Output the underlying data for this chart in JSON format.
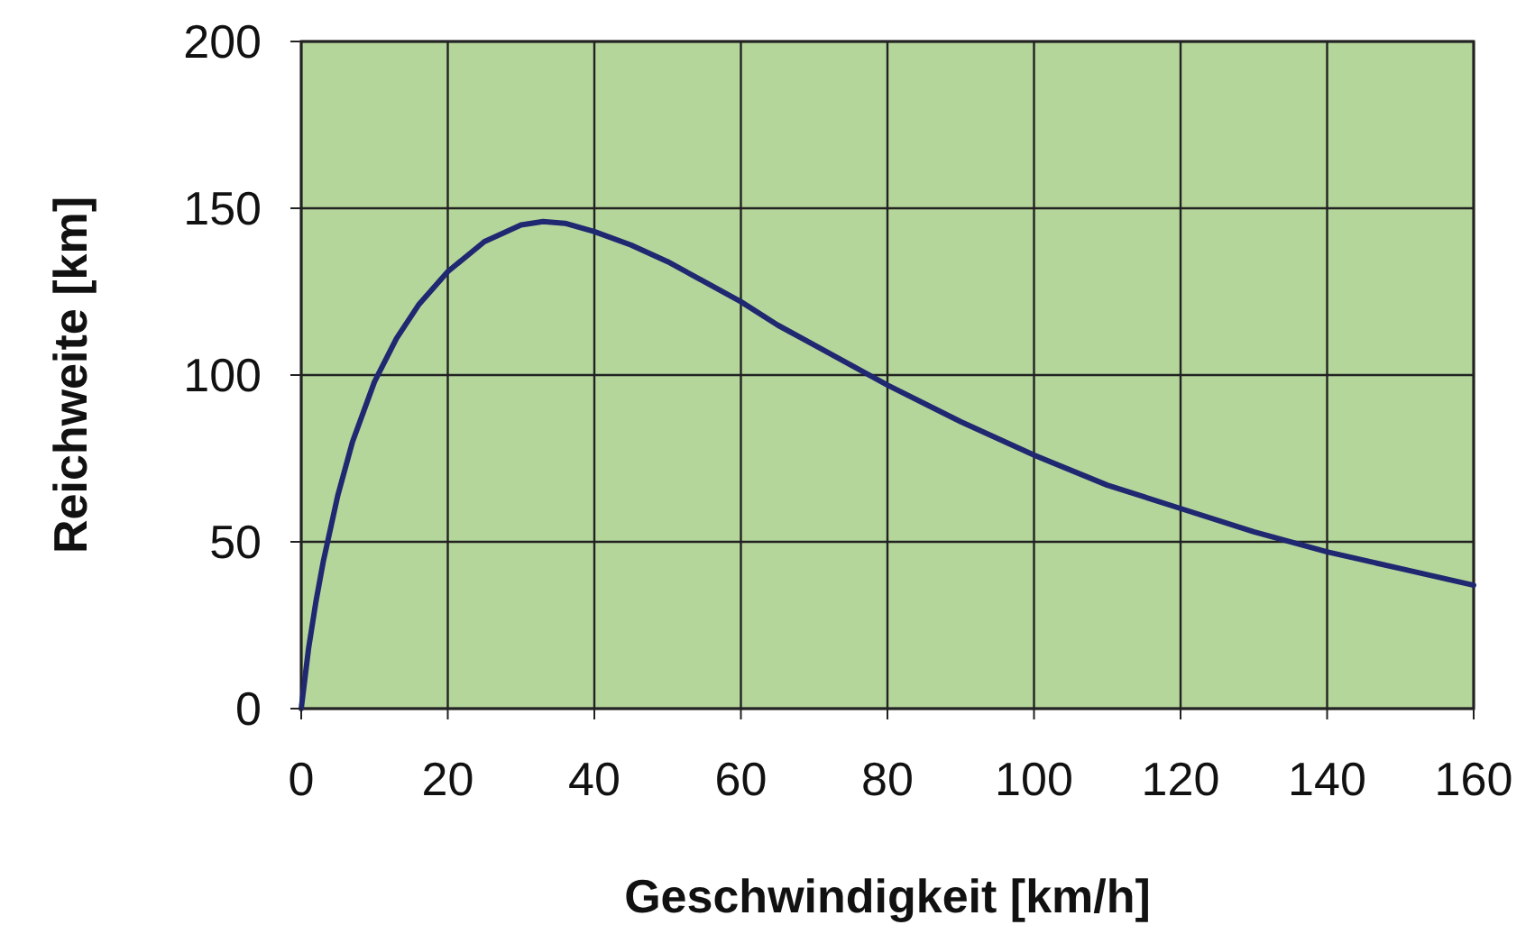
{
  "chart_data": {
    "type": "line",
    "xlabel": "Geschwindigkeit  [km/h]",
    "ylabel": "Reichweite  [km]",
    "x": [
      0,
      1,
      2,
      3,
      5,
      7,
      10,
      13,
      16,
      20,
      25,
      30,
      33,
      36,
      40,
      45,
      50,
      55,
      60,
      65,
      70,
      75,
      80,
      90,
      100,
      110,
      120,
      130,
      140,
      150,
      160
    ],
    "series": [
      {
        "color": "#1f2870",
        "values": [
          0,
          18,
          32,
          44,
          64,
          80,
          98,
          111,
          121,
          131,
          140,
          145,
          146,
          145.5,
          143,
          139,
          134,
          128,
          122,
          115,
          109,
          103,
          97,
          86,
          76,
          67,
          60,
          53,
          47,
          42,
          37
        ]
      }
    ],
    "xlim": [
      0,
      160
    ],
    "xticks": [
      0,
      20,
      40,
      60,
      80,
      100,
      120,
      140,
      160
    ],
    "ylim": [
      0,
      200
    ],
    "yticks": [
      0,
      50,
      100,
      150,
      200
    ],
    "grid": true,
    "line_style": "solid"
  }
}
